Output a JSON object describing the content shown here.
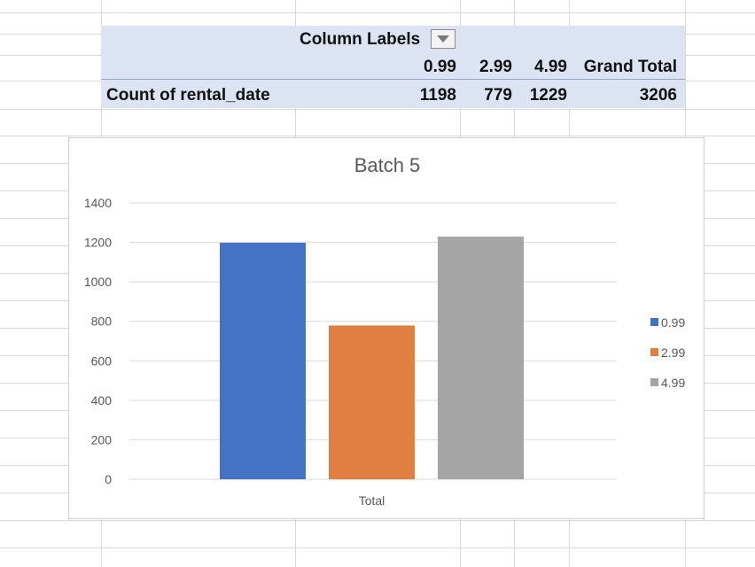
{
  "pivot": {
    "column_labels_header": "Column Labels",
    "columns": [
      "0.99",
      "2.99",
      "4.99",
      "Grand Total"
    ],
    "row_label": "Count of rental_date",
    "row_values": [
      "1198",
      "779",
      "1229",
      "3206"
    ]
  },
  "chart_data": {
    "type": "bar",
    "title": "Batch 5",
    "categories": [
      "Total"
    ],
    "series": [
      {
        "name": "0.99",
        "values": [
          1198
        ],
        "color": "#4472c4"
      },
      {
        "name": "2.99",
        "values": [
          779
        ],
        "color": "#e07f41"
      },
      {
        "name": "4.99",
        "values": [
          1229
        ],
        "color": "#a5a5a5"
      }
    ],
    "ylim": [
      0,
      1400
    ],
    "yticks": [
      0,
      200,
      400,
      600,
      800,
      1000,
      1200,
      1400
    ],
    "grid": true,
    "legend_position": "right"
  }
}
